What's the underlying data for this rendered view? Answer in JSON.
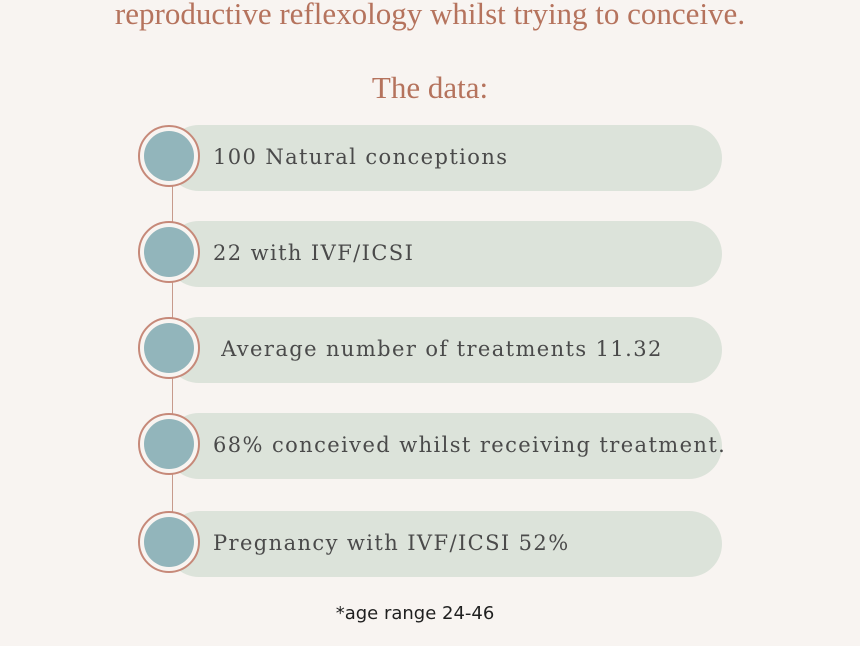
{
  "header": {
    "subtitle_line": "reproductive reflexology whilst trying to conceive.",
    "section_title": "The data:"
  },
  "stats": [
    {
      "text": "100 Natural conceptions"
    },
    {
      "text": "22 with IVF/ICSI"
    },
    {
      "text": " Average number of treatments 11.32"
    },
    {
      "text": "68% conceived whilst receiving treatment."
    },
    {
      "text": "Pregnancy with IVF/ICSI 52%"
    }
  ],
  "footnote": "*age range 24-46",
  "colors": {
    "background": "#f8f4f1",
    "accent_text": "#b5735d",
    "pill": "#dce3da",
    "dot_fill": "#92b5bb",
    "dot_ring": "#c68979",
    "body_text": "#4a4a4a"
  }
}
